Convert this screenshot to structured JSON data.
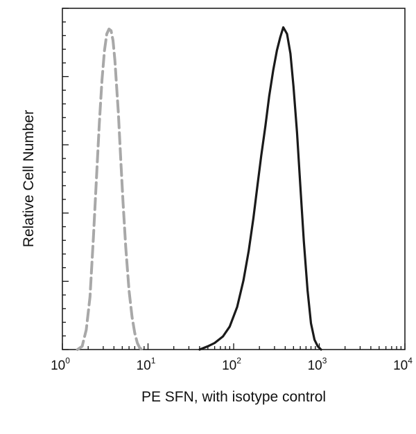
{
  "chart_data": {
    "type": "line",
    "title": "",
    "xlabel": "PE SFN, with isotype control",
    "ylabel": "Relative Cell Number",
    "xscale": "log",
    "xlim": [
      1,
      10000
    ],
    "ylim": [
      0,
      1.0
    ],
    "x_ticks": [
      {
        "base": "10",
        "exp": "0"
      },
      {
        "base": "10",
        "exp": "1"
      },
      {
        "base": "10",
        "exp": "2"
      },
      {
        "base": "10",
        "exp": "3"
      },
      {
        "base": "10",
        "exp": "4"
      }
    ],
    "grid": false,
    "legend": "none",
    "series": [
      {
        "style": "dashed",
        "color": "#a8a8a8",
        "x": [
          1.5,
          1.7,
          1.9,
          2.1,
          2.3,
          2.5,
          2.7,
          2.9,
          3.1,
          3.3,
          3.5,
          3.7,
          3.9,
          4.1,
          4.3,
          4.5,
          4.8,
          5.1,
          5.5,
          6.0,
          6.5,
          7.0,
          7.5,
          8.0,
          8.6
        ],
        "y": [
          0.0,
          0.01,
          0.06,
          0.16,
          0.34,
          0.52,
          0.69,
          0.82,
          0.91,
          0.96,
          0.975,
          0.97,
          0.94,
          0.88,
          0.8,
          0.72,
          0.58,
          0.45,
          0.31,
          0.18,
          0.1,
          0.05,
          0.02,
          0.005,
          0.0
        ]
      },
      {
        "style": "solid",
        "color": "#1a1a1a",
        "x": [
          40,
          50,
          60,
          75,
          90,
          110,
          130,
          150,
          170,
          190,
          210,
          235,
          260,
          290,
          320,
          350,
          380,
          420,
          460,
          500,
          550,
          600,
          660,
          730,
          800,
          880,
          960,
          1050
        ],
        "y": [
          0.0,
          0.01,
          0.02,
          0.04,
          0.07,
          0.13,
          0.21,
          0.3,
          0.4,
          0.5,
          0.59,
          0.68,
          0.77,
          0.85,
          0.91,
          0.95,
          0.98,
          0.96,
          0.9,
          0.8,
          0.66,
          0.5,
          0.33,
          0.18,
          0.08,
          0.03,
          0.01,
          0.0
        ]
      }
    ]
  }
}
